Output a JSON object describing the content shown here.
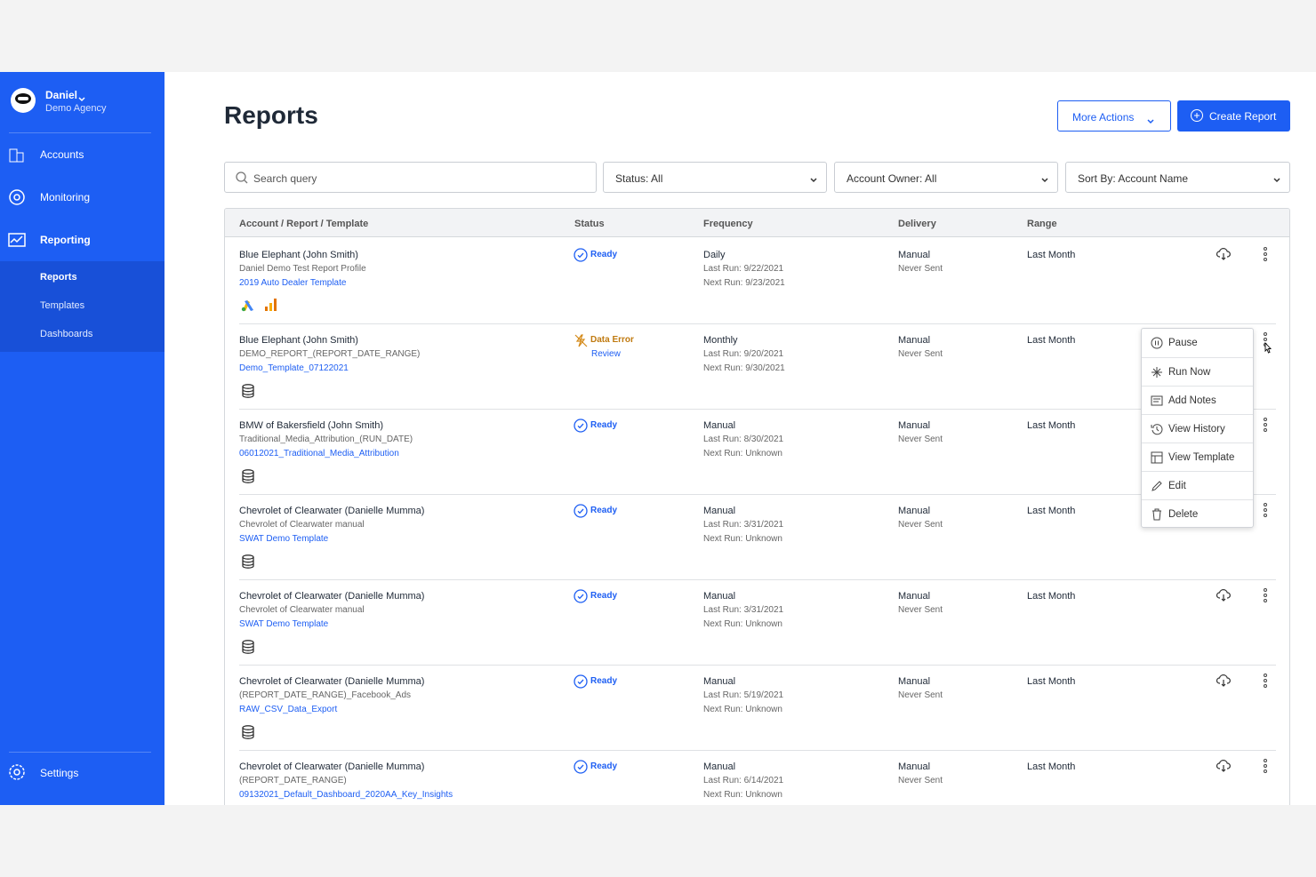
{
  "user": {
    "name": "Daniel",
    "agency": "Demo Agency"
  },
  "nav": {
    "items": [
      "Accounts",
      "Monitoring",
      "Reporting"
    ],
    "subitems": [
      "Reports",
      "Templates",
      "Dashboards"
    ],
    "settings": "Settings"
  },
  "header": {
    "title": "Reports",
    "more_actions": "More Actions",
    "create_report": "Create Report"
  },
  "filters": {
    "search_placeholder": "Search query",
    "status": "Status: All",
    "account_owner": "Account Owner: All",
    "sort_by": "Sort By: Account Name"
  },
  "table": {
    "columns": [
      "Account / Report / Template",
      "Status",
      "Frequency",
      "Delivery",
      "Range"
    ],
    "rows": [
      {
        "account": "Blue Elephant (John Smith)",
        "report": "Daniel Demo Test Report Profile",
        "template": "2019 Auto Dealer Template",
        "status": "Ready",
        "frequency": "Daily",
        "last_run": "Last Run: 9/22/2021",
        "next_run": "Next Run: 9/23/2021",
        "delivery": "Manual",
        "delivery_status": "Never Sent",
        "range": "Last Month"
      },
      {
        "account": "Blue Elephant (John Smith)",
        "report": "DEMO_REPORT_(REPORT_DATE_RANGE)",
        "template": "Demo_Template_07122021",
        "status": "Data Error",
        "status_link": "Review",
        "frequency": "Monthly",
        "last_run": "Last Run: 9/20/2021",
        "next_run": "Next Run: 9/30/2021",
        "delivery": "Manual",
        "delivery_status": "Never Sent",
        "range": "Last Month"
      },
      {
        "account": "BMW of Bakersfield (John Smith)",
        "report": "Traditional_Media_Attribution_(RUN_DATE)",
        "template": "06012021_Traditional_Media_Attribution",
        "status": "Ready",
        "frequency": "Manual",
        "last_run": "Last Run: 8/30/2021",
        "next_run": "Next Run: Unknown",
        "delivery": "Manual",
        "delivery_status": "Never Sent",
        "range": "Last Month"
      },
      {
        "account": "Chevrolet of Clearwater (Danielle Mumma)",
        "report": "Chevrolet of Clearwater manual",
        "template": "SWAT Demo Template",
        "status": "Ready",
        "frequency": "Manual",
        "last_run": "Last Run: 3/31/2021",
        "next_run": "Next Run: Unknown",
        "delivery": "Manual",
        "delivery_status": "Never Sent",
        "range": "Last Month"
      },
      {
        "account": "Chevrolet of Clearwater (Danielle Mumma)",
        "report": "Chevrolet of Clearwater manual",
        "template": "SWAT Demo Template",
        "status": "Ready",
        "frequency": "Manual",
        "last_run": "Last Run: 3/31/2021",
        "next_run": "Next Run: Unknown",
        "delivery": "Manual",
        "delivery_status": "Never Sent",
        "range": "Last Month"
      },
      {
        "account": "Chevrolet of Clearwater (Danielle Mumma)",
        "report": "(REPORT_DATE_RANGE)_Facebook_Ads",
        "template": "RAW_CSV_Data_Export",
        "status": "Ready",
        "frequency": "Manual",
        "last_run": "Last Run: 5/19/2021",
        "next_run": "Next Run: Unknown",
        "delivery": "Manual",
        "delivery_status": "Never Sent",
        "range": "Last Month"
      },
      {
        "account": "Chevrolet of Clearwater (Danielle Mumma)",
        "report": "(REPORT_DATE_RANGE)",
        "template": "09132021_Default_Dashboard_2020AA_Key_Insights",
        "status": "Ready",
        "frequency": "Manual",
        "last_run": "Last Run: 6/14/2021",
        "next_run": "Next Run: Unknown",
        "delivery": "Manual",
        "delivery_status": "Never Sent",
        "range": "Last Month"
      }
    ]
  },
  "menu": [
    "Pause",
    "Run Now",
    "Add Notes",
    "View History",
    "View Template",
    "Edit",
    "Delete"
  ]
}
